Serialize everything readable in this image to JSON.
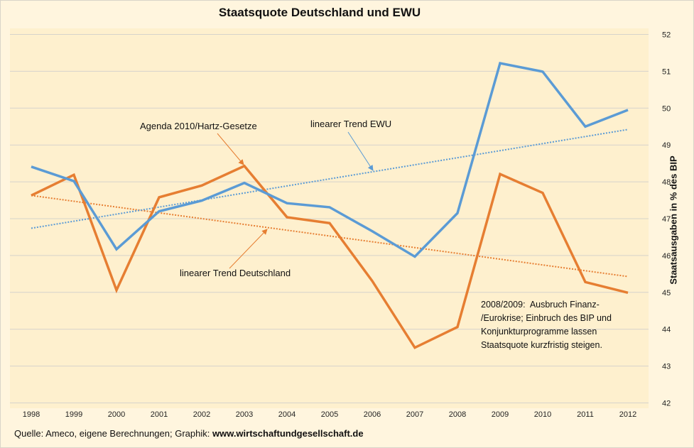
{
  "chart_data": {
    "type": "line",
    "title": "Staatsquote Deutschland und EWU",
    "xlabel": "",
    "ylabel": "Staatsausgaben in % des BIP",
    "y_axis_position": "right",
    "ylim": [
      42,
      52
    ],
    "yticks": [
      42,
      43,
      44,
      45,
      46,
      47,
      48,
      49,
      50,
      51,
      52
    ],
    "grid": true,
    "legend_position": "top-center",
    "categories": [
      "1998",
      "1999",
      "2000",
      "2001",
      "2002",
      "2003",
      "2004",
      "2005",
      "2006",
      "2007",
      "2008",
      "2009",
      "2010",
      "2011",
      "2012"
    ],
    "series": [
      {
        "name": "Deutschland",
        "color": "#E67E32",
        "values": [
          47.63,
          48.19,
          45.06,
          47.58,
          47.9,
          48.43,
          47.04,
          46.88,
          45.31,
          43.5,
          44.06,
          48.21,
          47.7,
          45.28,
          44.99
        ]
      },
      {
        "name": "EWU",
        "color": "#5B9BD5",
        "values": [
          48.41,
          48.02,
          46.17,
          47.2,
          47.49,
          47.97,
          47.42,
          47.31,
          46.66,
          45.97,
          47.15,
          51.22,
          50.99,
          49.5,
          49.95
        ]
      }
    ],
    "trendlines": [
      {
        "name": "linearer Trend Deutschland",
        "series": "Deutschland",
        "color": "#E67E32",
        "start": 47.63,
        "end": 45.43
      },
      {
        "name": "linearer Trend EWU",
        "series": "EWU",
        "color": "#5B9BD5",
        "start": 46.74,
        "end": 49.42
      }
    ],
    "annotations": [
      {
        "id": "agenda",
        "text": "Agenda 2010/Hartz-Gesetze",
        "color": "#E67E32",
        "target_year": "2003",
        "target_value": 48.43
      },
      {
        "id": "trend-ewu",
        "text": "linearer Trend EWU",
        "color": "#5B9BD5",
        "target_year": "2003.3",
        "target_value": 47.85
      },
      {
        "id": "trend-de",
        "text": "linearer Trend Deutschland",
        "color": "#E67E32",
        "target_year": "2003.5",
        "target_value": 46.8
      },
      {
        "id": "crisis",
        "text": "2008/2009:  Ausbruch Finanz-\n/Eurokrise; Einbruch des BIP und\nKonjunkturprogramme lassen\nStaatsquote kurzfristig steigen."
      }
    ],
    "source_prefix": "Quelle: Ameco, eigene Berechnungen; Graphik: ",
    "source_url": "www.wirtschaftundgesellschaft.de"
  }
}
